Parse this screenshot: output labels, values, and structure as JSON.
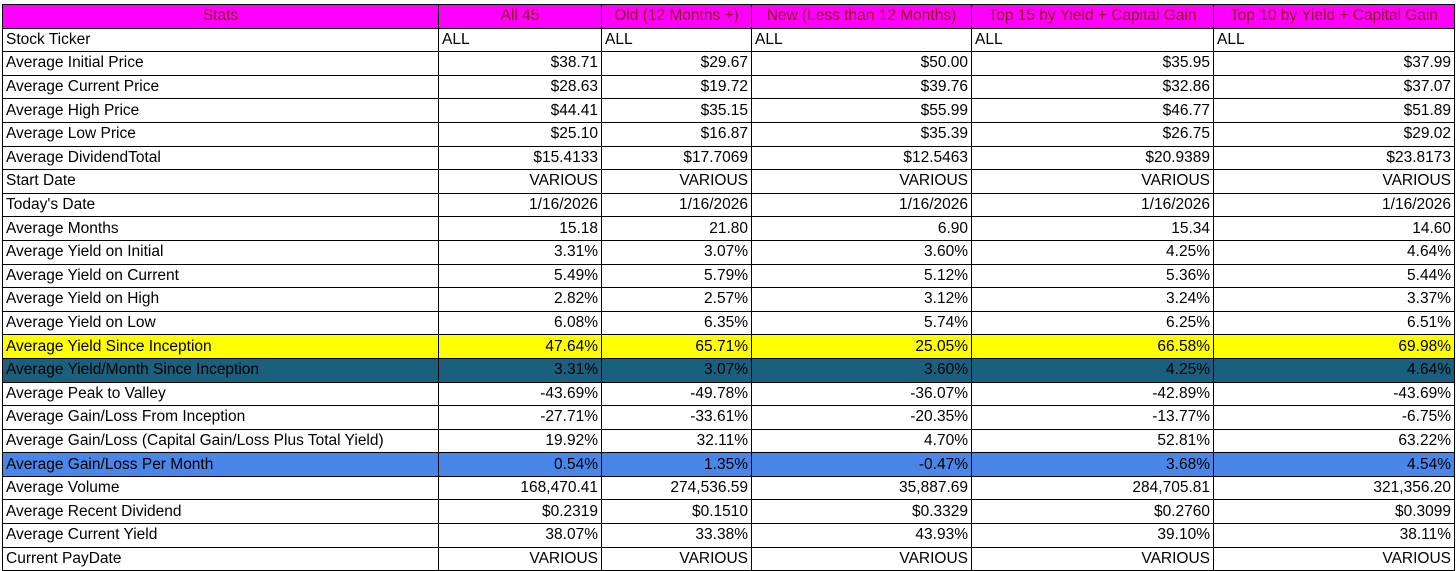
{
  "header": [
    "Stats",
    "All 45",
    "Old (12 Months +)",
    "New (Less than 12 Months)",
    "Top 15 by Yield + Capital Gain",
    "Top 10 by Yield + Capital Gain"
  ],
  "colors": {
    "header_bg": "#ff00ff",
    "header_text": "#8b1a1a",
    "highlight_yellow": "#ffff00",
    "highlight_teal": "#1b5f7e",
    "highlight_blue": "#4a86e8"
  },
  "rows": [
    {
      "label": "Stock Ticker",
      "values": [
        "ALL",
        "ALL",
        "ALL",
        "ALL",
        "ALL"
      ]
    },
    {
      "label": "Average Initial Price",
      "values": [
        "$38.71",
        "$29.67",
        "$50.00",
        "$35.95",
        "$37.99"
      ]
    },
    {
      "label": "Average Current Price",
      "values": [
        "$28.63",
        "$19.72",
        "$39.76",
        "$32.86",
        "$37.07"
      ]
    },
    {
      "label": "Average High Price",
      "values": [
        "$44.41",
        "$35.15",
        "$55.99",
        "$46.77",
        "$51.89"
      ]
    },
    {
      "label": "Average Low Price",
      "values": [
        "$25.10",
        "$16.87",
        "$35.39",
        "$26.75",
        "$29.02"
      ]
    },
    {
      "label": "Average DividendTotal",
      "values": [
        "$15.4133",
        "$17.7069",
        "$12.5463",
        "$20.9389",
        "$23.8173"
      ]
    },
    {
      "label": "Start Date",
      "values": [
        "VARIOUS",
        "VARIOUS",
        "VARIOUS",
        "VARIOUS",
        "VARIOUS"
      ]
    },
    {
      "label": "Today's Date",
      "values": [
        "1/16/2026",
        "1/16/2026",
        "1/16/2026",
        "1/16/2026",
        "1/16/2026"
      ]
    },
    {
      "label": "Average Months",
      "values": [
        "15.18",
        "21.80",
        "6.90",
        "15.34",
        "14.60"
      ]
    },
    {
      "label": "Average Yield on Initial",
      "values": [
        "3.31%",
        "3.07%",
        "3.60%",
        "4.25%",
        "4.64%"
      ]
    },
    {
      "label": "Average Yield on Current",
      "values": [
        "5.49%",
        "5.79%",
        "5.12%",
        "5.36%",
        "5.44%"
      ]
    },
    {
      "label": "Average Yield on High",
      "values": [
        "2.82%",
        "2.57%",
        "3.12%",
        "3.24%",
        "3.37%"
      ]
    },
    {
      "label": "Average Yield on Low",
      "values": [
        "6.08%",
        "6.35%",
        "5.74%",
        "6.25%",
        "6.51%"
      ]
    },
    {
      "label": "Average Yield Since Inception",
      "values": [
        "47.64%",
        "65.71%",
        "25.05%",
        "66.58%",
        "69.98%"
      ]
    },
    {
      "label": "Average Yield/Month Since Inception",
      "values": [
        "3.31%",
        "3.07%",
        "3.60%",
        "4.25%",
        "4.64%"
      ]
    },
    {
      "label": "Average Peak to Valley",
      "values": [
        "-43.69%",
        "-49.78%",
        "-36.07%",
        "-42.89%",
        "-43.69%"
      ]
    },
    {
      "label": "Average Gain/Loss From Inception",
      "values": [
        "-27.71%",
        "-33.61%",
        "-20.35%",
        "-13.77%",
        "-6.75%"
      ]
    },
    {
      "label": "Average Gain/Loss (Capital Gain/Loss Plus Total Yield)",
      "values": [
        "19.92%",
        "32.11%",
        "4.70%",
        "52.81%",
        "63.22%"
      ]
    },
    {
      "label": "Average Gain/Loss Per Month",
      "values": [
        "0.54%",
        "1.35%",
        "-0.47%",
        "3.68%",
        "4.54%"
      ]
    },
    {
      "label": "Average Volume",
      "values": [
        "168,470.41",
        "274,536.59",
        "35,887.69",
        "284,705.81",
        "321,356.20"
      ]
    },
    {
      "label": "Average Recent Dividend",
      "values": [
        "$0.2319",
        "$0.1510",
        "$0.3329",
        "$0.2760",
        "$0.3099"
      ]
    },
    {
      "label": "Average Current Yield",
      "values": [
        "38.07%",
        "33.38%",
        "43.93%",
        "39.10%",
        "38.11%"
      ]
    },
    {
      "label": "Current PayDate",
      "values": [
        "VARIOUS",
        "VARIOUS",
        "VARIOUS",
        "VARIOUS",
        "VARIOUS"
      ]
    }
  ]
}
